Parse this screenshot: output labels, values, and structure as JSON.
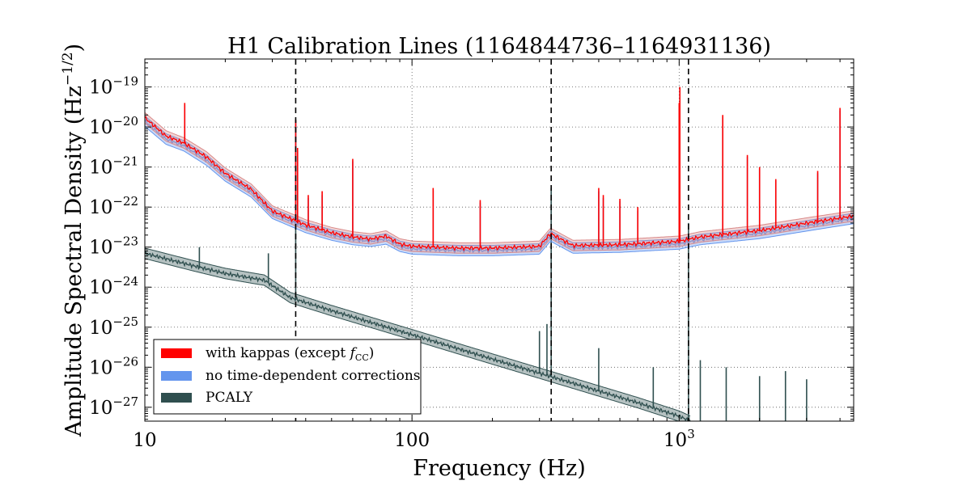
{
  "chart_data": {
    "type": "line",
    "title": "H1 Calibration Lines (1164844736–1164931136)",
    "xlabel": "Frequency (Hz)",
    "ylabel": "Amplitude Spectral Density (Hz",
    "ylabel_exponent": "−1/2",
    "ylabel_close": ")",
    "x_scale": "log",
    "y_scale": "log",
    "xlim": [
      10,
      4500
    ],
    "ylim": [
      4.5e-28,
      5e-19
    ],
    "grid": true,
    "legend_position": "lower-left",
    "x_ticks": [
      {
        "value": 10,
        "base": "10",
        "exp": ""
      },
      {
        "value": 100,
        "base": "100",
        "exp": ""
      },
      {
        "value": 1000,
        "base": "10",
        "exp": "3"
      }
    ],
    "y_ticks": [
      {
        "value": 1e-19,
        "base": "10",
        "exp": "−19"
      },
      {
        "value": 1e-20,
        "base": "10",
        "exp": "−20"
      },
      {
        "value": 1e-21,
        "base": "10",
        "exp": "−21"
      },
      {
        "value": 1e-22,
        "base": "10",
        "exp": "−22"
      },
      {
        "value": 1e-23,
        "base": "10",
        "exp": "−23"
      },
      {
        "value": 1e-24,
        "base": "10",
        "exp": "−24"
      },
      {
        "value": 1e-25,
        "base": "10",
        "exp": "−25"
      },
      {
        "value": 1e-26,
        "base": "10",
        "exp": "−26"
      },
      {
        "value": 1e-27,
        "base": "10",
        "exp": "−27"
      }
    ],
    "vertical_lines": [
      36.7,
      331.9,
      1083.7
    ],
    "series": [
      {
        "name": "with kappas (except f_CC)",
        "legend_label": "with kappas (except ",
        "legend_math": "f",
        "legend_sub": "CC",
        "legend_tail": ")",
        "color": "#ff0000",
        "band_color": "#d98a8a",
        "baseline": [
          [
            10,
            1.7e-20
          ],
          [
            12,
            6e-21
          ],
          [
            14,
            4e-21
          ],
          [
            17,
            1.8e-21
          ],
          [
            20,
            7e-22
          ],
          [
            25,
            2.8e-22
          ],
          [
            30,
            8e-23
          ],
          [
            40,
            3.6e-23
          ],
          [
            50,
            2.3e-23
          ],
          [
            60,
            1.8e-23
          ],
          [
            70,
            1.6e-23
          ],
          [
            80,
            1.9e-23
          ],
          [
            90,
            1.2e-23
          ],
          [
            100,
            1.05e-23
          ],
          [
            150,
            9.5e-24
          ],
          [
            200,
            9.5e-24
          ],
          [
            300,
            1.05e-23
          ],
          [
            330,
            2.2e-23
          ],
          [
            400,
            1.1e-23
          ],
          [
            600,
            1.15e-23
          ],
          [
            1000,
            1.4e-23
          ],
          [
            1200,
            1.8e-23
          ],
          [
            2000,
            2.6e-23
          ],
          [
            3000,
            4e-23
          ],
          [
            4500,
            6e-23
          ]
        ],
        "lines": [
          [
            14.1,
            4e-20
          ],
          [
            36.7,
            1.5e-20
          ],
          [
            37.3,
            3e-21
          ],
          [
            40.9,
            2e-22
          ],
          [
            46.1,
            2.5e-22
          ],
          [
            60,
            1.6e-21
          ],
          [
            120,
            3e-22
          ],
          [
            180,
            1.5e-22
          ],
          [
            500,
            3e-22
          ],
          [
            520,
            2e-22
          ],
          [
            600,
            1.6e-22
          ],
          [
            700,
            1e-22
          ],
          [
            1000,
            4e-20
          ],
          [
            1006,
            1e-19
          ],
          [
            1456,
            2e-20
          ],
          [
            1800,
            2e-21
          ],
          [
            2000,
            1e-21
          ],
          [
            2300,
            5e-22
          ],
          [
            3300,
            8e-22
          ],
          [
            4000,
            3e-20
          ]
        ]
      },
      {
        "name": "no time-dependent corrections",
        "legend_label": "no time-dependent corrections",
        "color": "#6495ed",
        "band_color": "#6495ed",
        "baseline": [
          [
            10,
            1.4e-20
          ],
          [
            12,
            5e-21
          ],
          [
            14,
            3.4e-21
          ],
          [
            17,
            1.5e-21
          ],
          [
            20,
            6e-22
          ],
          [
            25,
            2.4e-22
          ],
          [
            30,
            7e-23
          ],
          [
            40,
            3.1e-23
          ],
          [
            50,
            2e-23
          ],
          [
            60,
            1.55e-23
          ],
          [
            70,
            1.4e-23
          ],
          [
            80,
            1.6e-23
          ],
          [
            90,
            1.05e-23
          ],
          [
            100,
            9e-24
          ],
          [
            150,
            8.2e-24
          ],
          [
            200,
            8.2e-24
          ],
          [
            300,
            9e-24
          ],
          [
            330,
            1.9e-23
          ],
          [
            400,
            9.5e-24
          ],
          [
            600,
            1e-23
          ],
          [
            1000,
            1.2e-23
          ],
          [
            1200,
            1.55e-23
          ],
          [
            2000,
            2.2e-23
          ],
          [
            3000,
            3.4e-23
          ],
          [
            4500,
            5.2e-23
          ]
        ],
        "lines": [
          [
            14.1,
            3.5e-20
          ],
          [
            36.7,
            1.3e-20
          ],
          [
            37.3,
            2.5e-21
          ],
          [
            40.9,
            1.7e-22
          ],
          [
            46.1,
            2e-22
          ],
          [
            60,
            1.4e-21
          ],
          [
            120,
            2.6e-22
          ],
          [
            180,
            1.3e-22
          ],
          [
            500,
            2.5e-22
          ],
          [
            520,
            1.7e-22
          ],
          [
            600,
            1.4e-22
          ],
          [
            700,
            8e-23
          ],
          [
            1000,
            3.5e-20
          ],
          [
            1006,
            9e-20
          ],
          [
            1456,
            1.8e-20
          ],
          [
            1800,
            1.8e-21
          ],
          [
            2000,
            9e-22
          ],
          [
            2300,
            4.5e-22
          ],
          [
            3300,
            7e-22
          ],
          [
            4000,
            2.6e-20
          ]
        ]
      },
      {
        "name": "PCALY",
        "legend_label": "PCALY",
        "color": "#2f4f4f",
        "band_color": "#2f4f4f",
        "baseline": [
          [
            10,
            7e-24
          ],
          [
            15,
            3.5e-24
          ],
          [
            20,
            2.2e-24
          ],
          [
            25,
            1.7e-24
          ],
          [
            28,
            1.5e-24
          ],
          [
            30,
            1.1e-24
          ],
          [
            35,
            5.5e-25
          ],
          [
            50,
            2.6e-25
          ],
          [
            100,
            6.5e-26
          ],
          [
            200,
            1.6e-26
          ],
          [
            400,
            4e-27
          ],
          [
            700,
            1.3e-27
          ],
          [
            1000,
            6e-28
          ],
          [
            1100,
            4.5e-28
          ]
        ],
        "lines": [
          [
            16,
            1e-23
          ],
          [
            29,
            7e-24
          ],
          [
            36.7,
            1.5e-20
          ],
          [
            331.9,
            3e-22
          ],
          [
            1083.7,
            4e-23
          ],
          [
            300,
            8e-26
          ],
          [
            320,
            1.2e-25
          ],
          [
            500,
            3e-26
          ],
          [
            800,
            1e-26
          ],
          [
            1200,
            1.5e-26
          ],
          [
            1500,
            1e-26
          ],
          [
            2000,
            6e-27
          ],
          [
            2500,
            8e-27
          ],
          [
            3000,
            5e-27
          ]
        ]
      }
    ]
  }
}
